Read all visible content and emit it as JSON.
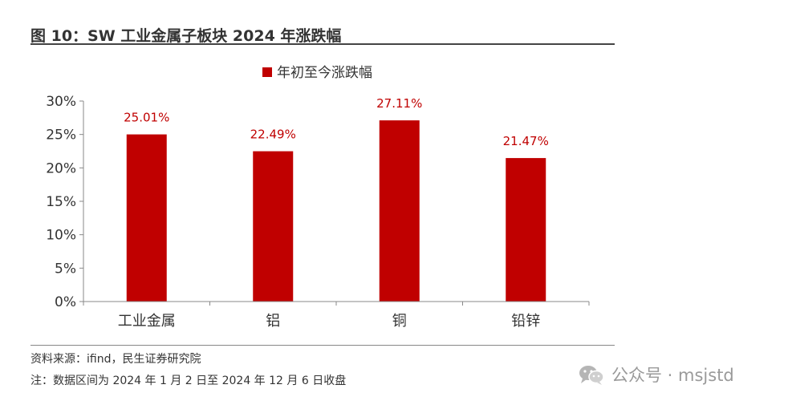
{
  "header": {
    "title": "图 10：SW 工业金属子板块 2024 年涨跌幅"
  },
  "footer": {
    "source": "资料来源：ifind，民生证券研究院",
    "note": "注：数据区间为 2024 年 1 月 2 日至 2024 年 12 月 6 日收盘"
  },
  "watermark": {
    "text": "公众号 · msjstd",
    "icon": "wechat-icon"
  },
  "colors": {
    "bar": "#C00000",
    "label": "#C00000",
    "axis": "#888888",
    "text": "#333333"
  },
  "chart_data": {
    "type": "bar",
    "title": "",
    "xlabel": "",
    "ylabel": "",
    "categories": [
      "工业金属",
      "铝",
      "铜",
      "铅锌"
    ],
    "series": [
      {
        "name": "年初至今涨跌幅",
        "values": [
          25.01,
          22.49,
          27.11,
          21.47
        ]
      }
    ],
    "data_labels": [
      "25.01%",
      "22.49%",
      "27.11%",
      "21.47%"
    ],
    "ylim": [
      0,
      30
    ],
    "yticks": [
      0,
      5,
      10,
      15,
      20,
      25,
      30
    ],
    "ytick_labels": [
      "0%",
      "5%",
      "10%",
      "15%",
      "20%",
      "25%",
      "30%"
    ],
    "legend": "top-center",
    "grid": false
  }
}
